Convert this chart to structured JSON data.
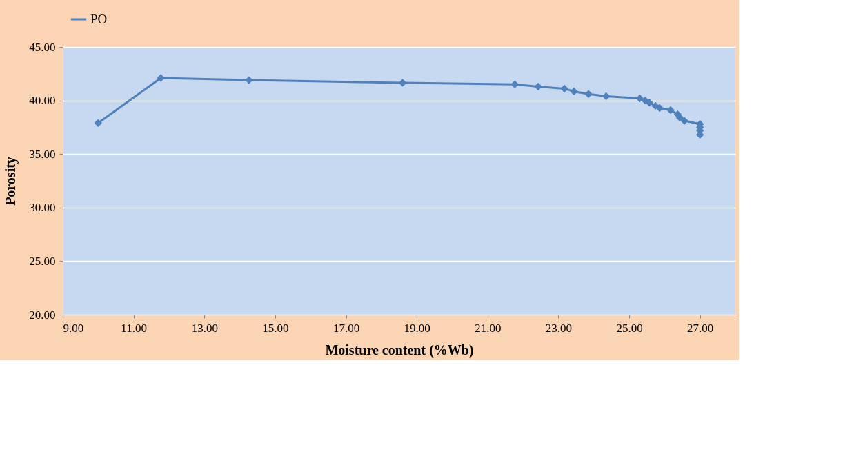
{
  "chart_data": {
    "type": "line",
    "xlabel": "Moisture content (%Wb)",
    "ylabel": "Porosity",
    "x": [
      10.0,
      11.77,
      14.26,
      18.6,
      21.77,
      22.43,
      23.17,
      23.44,
      23.85,
      24.35,
      25.3,
      25.45,
      25.57,
      25.74,
      25.86,
      26.17,
      26.37,
      26.43,
      26.56,
      27.0,
      27.0,
      27.0,
      27.0
    ],
    "series": [
      {
        "name": "PO",
        "color": "#4f81bd",
        "values": [
          37.9,
          42.1,
          41.9,
          41.65,
          41.5,
          41.3,
          41.1,
          40.85,
          40.6,
          40.4,
          40.2,
          40.0,
          39.8,
          39.5,
          39.3,
          39.1,
          38.7,
          38.4,
          38.1,
          37.8,
          37.5,
          37.2,
          36.8
        ]
      }
    ],
    "xlim": [
      9,
      28
    ],
    "xticks": [
      {
        "value": 9,
        "label": "9.00"
      },
      {
        "value": 11,
        "label": "11.00"
      },
      {
        "value": 13,
        "label": "13.00"
      },
      {
        "value": 15,
        "label": "15.00"
      },
      {
        "value": 17,
        "label": "17.00"
      },
      {
        "value": 19,
        "label": "19.00"
      },
      {
        "value": 21,
        "label": "21.00"
      },
      {
        "value": 23,
        "label": "23.00"
      },
      {
        "value": 25,
        "label": "25.00"
      },
      {
        "value": 27,
        "label": "27.00"
      }
    ],
    "ylim": [
      20,
      45
    ],
    "yticks": [
      {
        "value": 20,
        "label": "20.00"
      },
      {
        "value": 25,
        "label": "25.00"
      },
      {
        "value": 30,
        "label": "30.00"
      },
      {
        "value": 35,
        "label": "35.00"
      },
      {
        "value": 40,
        "label": "40.00"
      },
      {
        "value": 45,
        "label": "45.00"
      }
    ],
    "grid": "y",
    "legend": "top",
    "marker": "diamond",
    "line_style": "solid"
  }
}
